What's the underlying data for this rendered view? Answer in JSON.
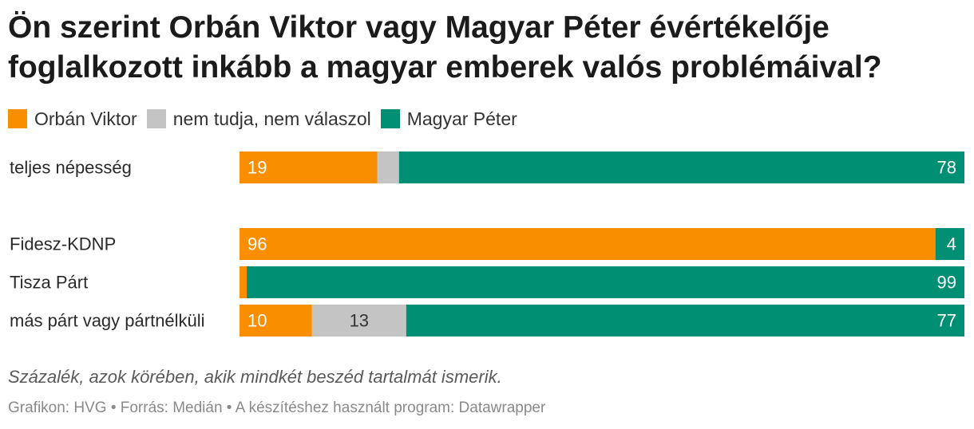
{
  "chart_data": {
    "type": "bar",
    "stacked": true,
    "orientation": "horizontal",
    "title": "Ön szerint Orbán Viktor vagy Magyar Péter évértékelője foglalkozott inkább a magyar emberek valós problémáival?",
    "note": "Százalék, azok körében, akik mindkét beszéd tartalmát ismerik.",
    "footer": "Grafikon: HVG • Forrás: Medián • A készítéshez használt program: Datawrapper",
    "xlim": [
      0,
      100
    ],
    "categories": [
      "teljes népesség",
      "Fidesz-KDNP",
      "Tisza Párt",
      "más párt vagy pártnélküli"
    ],
    "series": [
      {
        "name": "Orbán Viktor",
        "color": "#f88e00",
        "values": [
          19,
          96,
          1,
          10
        ],
        "labels": [
          "19",
          "96",
          "",
          "10"
        ]
      },
      {
        "name": "nem tudja, nem válaszol",
        "color": "#c4c4c4",
        "values": [
          3,
          0,
          0,
          13
        ],
        "labels": [
          "",
          "",
          "",
          "13"
        ]
      },
      {
        "name": "Magyar Péter",
        "color": "#008f72",
        "values": [
          78,
          4,
          99,
          77
        ],
        "labels": [
          "78",
          "4",
          "99",
          "77"
        ]
      }
    ]
  }
}
